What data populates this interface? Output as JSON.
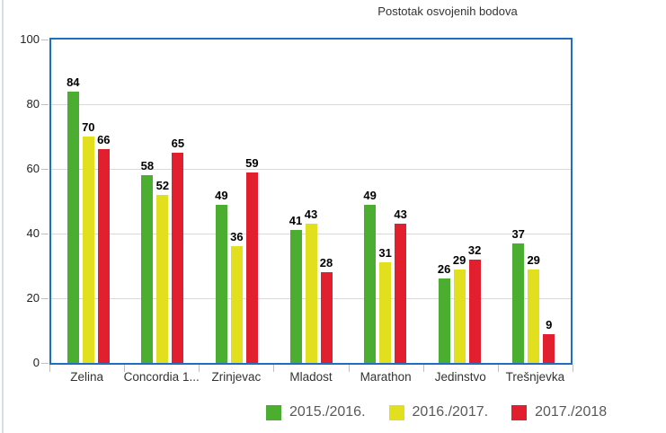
{
  "page": {
    "left_rule_color": "#d8dee5"
  },
  "chart_data": {
    "type": "bar",
    "title": "Postotak osvojenih bodova",
    "categories": [
      "Zelina",
      "Concordia 1...",
      "Zrinjevac",
      "Mladost",
      "Marathon",
      "Jedinstvo",
      "Trešnjevka"
    ],
    "series": [
      {
        "name": "2015./2016.",
        "color": "#4cae30",
        "values": [
          84,
          58,
          49,
          41,
          49,
          26,
          37
        ]
      },
      {
        "name": "2016./2017.",
        "color": "#e2e01e",
        "values": [
          70,
          52,
          36,
          43,
          31,
          29,
          29
        ]
      },
      {
        "name": "2017./2018",
        "color": "#e11f2f",
        "values": [
          66,
          65,
          59,
          28,
          43,
          32,
          9
        ]
      }
    ],
    "value_labels": true,
    "xlabel": "",
    "ylabel": "",
    "ylim": [
      0,
      100
    ],
    "yticks": [
      0,
      20,
      40,
      60,
      80,
      100
    ],
    "grid": true,
    "legend_position": "bottom",
    "plot_border_color": "#1e6fbe",
    "gridline_color": "#d9d9d9",
    "tick_color": "#c0c0c0"
  }
}
